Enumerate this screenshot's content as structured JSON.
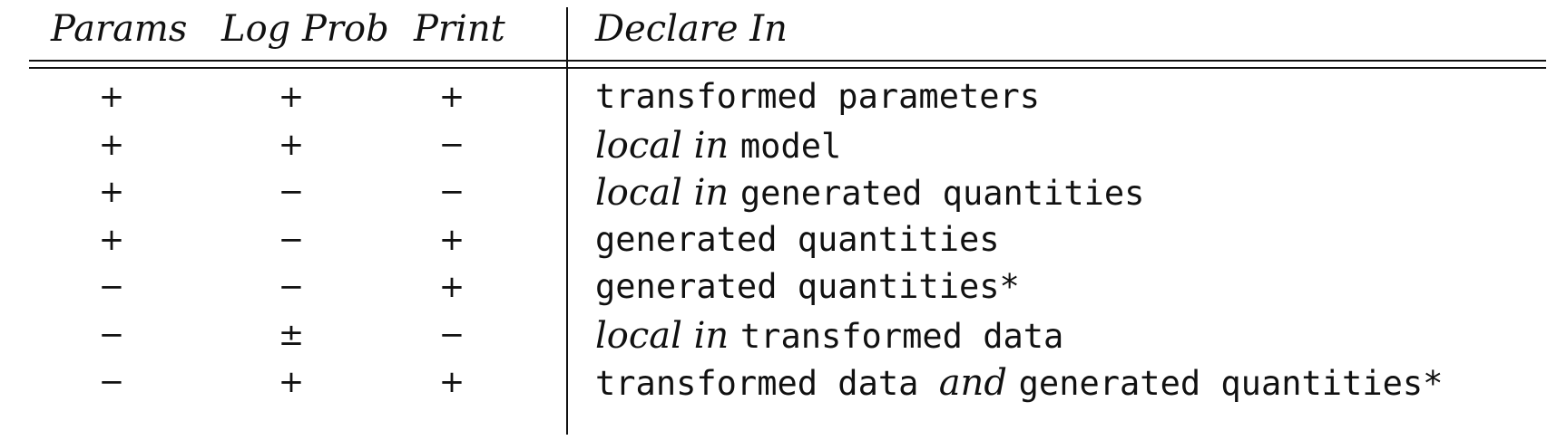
{
  "headers": {
    "params": "Params",
    "log_prob": "Log Prob",
    "print": "Print",
    "declare_in": "Declare In"
  },
  "rows": [
    {
      "params": "+",
      "log_prob": "+",
      "print": "+",
      "declare": [
        {
          "text": "transformed parameters",
          "style": "code"
        }
      ]
    },
    {
      "params": "+",
      "log_prob": "+",
      "print": "−",
      "declare": [
        {
          "text": "local in ",
          "style": "italic"
        },
        {
          "text": "model",
          "style": "code"
        }
      ]
    },
    {
      "params": "+",
      "log_prob": "−",
      "print": "−",
      "declare": [
        {
          "text": "local in ",
          "style": "italic"
        },
        {
          "text": "generated quantities",
          "style": "code"
        }
      ]
    },
    {
      "params": "+",
      "log_prob": "−",
      "print": "+",
      "declare": [
        {
          "text": "generated quantities",
          "style": "code"
        }
      ]
    },
    {
      "params": "−",
      "log_prob": "−",
      "print": "+",
      "declare": [
        {
          "text": "generated quantities*",
          "style": "code"
        }
      ]
    },
    {
      "params": "−",
      "log_prob": "±",
      "print": "−",
      "declare": [
        {
          "text": "local in ",
          "style": "italic"
        },
        {
          "text": "transformed data",
          "style": "code"
        }
      ]
    },
    {
      "params": "−",
      "log_prob": "+",
      "print": "+",
      "declare": [
        {
          "text": "transformed data ",
          "style": "code"
        },
        {
          "text": "and ",
          "style": "italic"
        },
        {
          "text": "generated quantities*",
          "style": "code"
        }
      ]
    }
  ]
}
